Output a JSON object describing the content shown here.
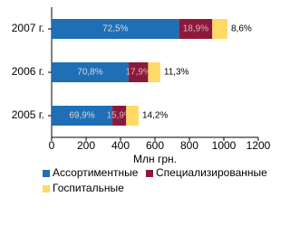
{
  "chart_data": {
    "type": "hbar_stacked",
    "categories": [
      "2007 г.",
      "2006 г.",
      "2005 г."
    ],
    "series": [
      {
        "name": "Ассортиментные",
        "color": "#1f6fb6",
        "values": [
          740,
          447,
          353
        ],
        "share_labels": [
          "72,5%",
          "70,8%",
          "69,9%"
        ]
      },
      {
        "name": "Специализированные",
        "color": "#8b1a3a",
        "values": [
          193,
          113,
          80
        ],
        "share_labels": [
          "18,9%",
          "17,9%",
          "15,9%"
        ]
      },
      {
        "name": "Госпитальные",
        "color": "#ffd966",
        "values": [
          88,
          71,
          72
        ],
        "share_labels": [
          "8,6%",
          "11,3%",
          "14,2%"
        ]
      }
    ],
    "xlabel": "Млн грн.",
    "xlim": [
      0,
      1200
    ],
    "xticks": [
      0,
      200,
      400,
      600,
      800,
      1000,
      1200
    ]
  }
}
